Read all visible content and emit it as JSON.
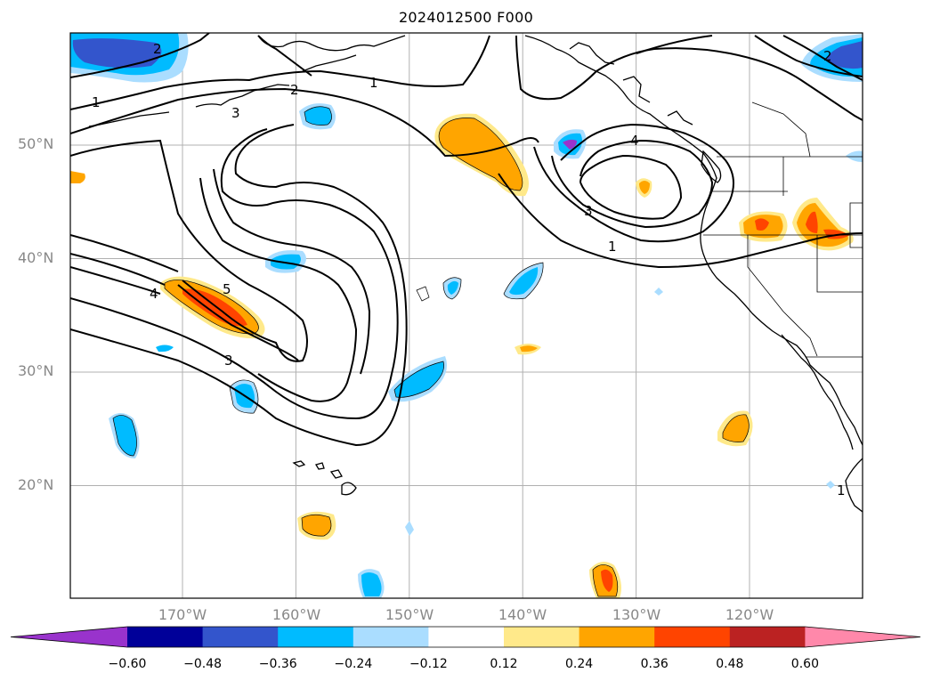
{
  "title": "2024012500 F000",
  "map": {
    "lat_labels": [
      {
        "text": "50°N",
        "lat": 50
      },
      {
        "text": "40°N",
        "lat": 40
      },
      {
        "text": "30°N",
        "lat": 30
      },
      {
        "text": "20°N",
        "lat": 20
      }
    ],
    "lon_labels": [
      {
        "text": "170°W",
        "lon": -170
      },
      {
        "text": "160°W",
        "lon": -160
      },
      {
        "text": "150°W",
        "lon": -150
      },
      {
        "text": "140°W",
        "lon": -140
      },
      {
        "text": "130°W",
        "lon": -130
      },
      {
        "text": "120°W",
        "lon": -120
      }
    ],
    "contour_labels": [
      "2",
      "1",
      "2",
      "3",
      "1",
      "4",
      "3",
      "1",
      "5",
      "4",
      "3",
      "2",
      "1"
    ]
  },
  "colorbar": {
    "colors": [
      "#9933cc",
      "#000099",
      "#3355cc",
      "#00bbff",
      "#aaddff",
      "#ffffff",
      "#ffe98a",
      "#ffa500",
      "#ff4400",
      "#bb2222",
      "#ff88aa"
    ],
    "ticks": [
      "−0.60",
      "−0.48",
      "−0.36",
      "−0.24",
      "−0.12",
      "0.12",
      "0.24",
      "0.36",
      "0.48",
      "0.60"
    ]
  }
}
